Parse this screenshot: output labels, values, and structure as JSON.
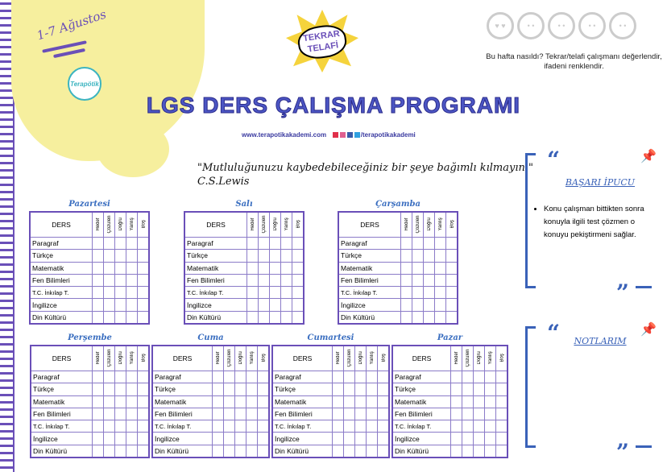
{
  "header": {
    "date": "1-7 Ağustos",
    "logo_text": "Terapötik",
    "badge": [
      "TEKRAR",
      "TELAFİ"
    ],
    "title": "LGS DERS ÇALIŞMA PROGRAMI",
    "website": "www.terapotikakademi.com",
    "social": "/terapotikakademi"
  },
  "mood": {
    "faces": [
      "love",
      "happy",
      "neutral",
      "sad",
      "crying"
    ],
    "text": "Bu hafta nasıldı? Tekrar/telafi çalışmanı değerlendir, ifadeni renklendir."
  },
  "quote": {
    "text": "\"Mutluluğunuzu kaybedebileceğiniz bir şeye bağımlı kılmayın.\"",
    "author": "C.S.Lewis"
  },
  "table": {
    "header": "DERS",
    "columns": [
      "Hedef",
      "Çözülen",
      "Doğru",
      "Yanlış",
      "Boş"
    ],
    "subjects": [
      "Paragraf",
      "Türkçe",
      "Matematik",
      "Fen Bilimleri",
      "T.C. İnkılap T.",
      "İngilizce",
      "Din Kültürü"
    ]
  },
  "days": [
    "Pazartesi",
    "Salı",
    "Çarşamba",
    "Perşembe",
    "Cuma",
    "Cumartesi",
    "Pazar"
  ],
  "tip": {
    "title": "BAŞARI İPUCU",
    "text": "Konu çalışman bittikten sonra konuyla ilgili test çözmen o konuyu pekiştirmeni sağlar."
  },
  "notes": {
    "title": "NOTLARIM"
  },
  "colors": {
    "purple": "#6a4fb8",
    "blue": "#3a62b8",
    "yellow": "#f6ef9e"
  }
}
